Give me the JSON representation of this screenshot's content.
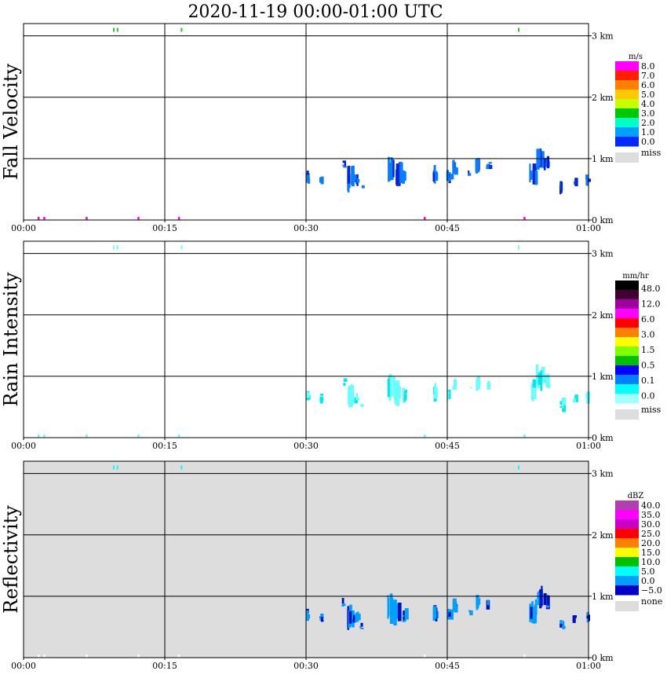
{
  "title": "2020-11-19   00:00-01:00 UTC",
  "chart_data": [
    {
      "type": "heatmap",
      "ylabel": "Fall Velocity",
      "x_ticks": [
        "00:00",
        "00:15",
        "00:30",
        "00:45",
        "01:00"
      ],
      "y_ticks": [
        {
          "value": 0,
          "label": "0 km"
        },
        {
          "value": 1,
          "label": "1 km"
        },
        {
          "value": 2,
          "label": "2 km"
        },
        {
          "value": 3,
          "label": "3 km"
        }
      ],
      "xlim_minutes": [
        0,
        60
      ],
      "ylim_km": [
        0,
        3.2
      ],
      "grid": true,
      "background": "#ffffff",
      "colorbar": {
        "unit": "m/s",
        "labels": [
          "8.0",
          "7.0",
          "6.0",
          "5.0",
          "4.0",
          "3.0",
          "2.0",
          "1.0",
          "0.0"
        ],
        "colors": [
          "#ff00ff",
          "#ff1e00",
          "#ff7f00",
          "#ffc800",
          "#c8ff00",
          "#00c800",
          "#00ffc8",
          "#00a0ff",
          "#0028ff"
        ],
        "extra": {
          "label": "miss",
          "color": "#dddddd"
        }
      },
      "echo_color": "#0a7cff",
      "echo_color_dark": "#0022dd",
      "surface_color": "#ff00ff",
      "top_color": "#30c030"
    },
    {
      "type": "heatmap",
      "ylabel": "Rain Intensity",
      "x_ticks": [
        "00:00",
        "00:15",
        "00:30",
        "00:45",
        "01:00"
      ],
      "y_ticks": [
        {
          "value": 0,
          "label": "0 km"
        },
        {
          "value": 1,
          "label": "1 km"
        },
        {
          "value": 2,
          "label": "2 km"
        },
        {
          "value": 3,
          "label": "3 km"
        }
      ],
      "xlim_minutes": [
        0,
        60
      ],
      "ylim_km": [
        0,
        3.2
      ],
      "grid": true,
      "background": "#ffffff",
      "colorbar": {
        "unit": "mm/hr",
        "labels": [
          "48.0",
          "12.0",
          "6.0",
          "3.0",
          "1.5",
          "0.5",
          "0.1",
          "0.0"
        ],
        "colors": [
          "#000000",
          "#400030",
          "#a000a0",
          "#ff00ff",
          "#ff0000",
          "#ff8000",
          "#ffff00",
          "#80ff00",
          "#00c000",
          "#0000ff",
          "#0080ff",
          "#00ffff",
          "#a0ffff"
        ],
        "extra": {
          "label": "miss",
          "color": "#dddddd"
        }
      },
      "echo_color": "#66ffff",
      "echo_color_dark": "#00e8e8",
      "surface_color": "#66ffff",
      "top_color": "#66ffff"
    },
    {
      "type": "heatmap",
      "ylabel": "Reflectivity",
      "x_ticks": [
        "00:00",
        "00:15",
        "00:30",
        "00:45",
        "01:00"
      ],
      "y_ticks": [
        {
          "value": 0,
          "label": "0 km"
        },
        {
          "value": 1,
          "label": "1 km"
        },
        {
          "value": 2,
          "label": "2 km"
        },
        {
          "value": 3,
          "label": "3 km"
        }
      ],
      "xlim_minutes": [
        0,
        60
      ],
      "ylim_km": [
        0,
        3.2
      ],
      "grid": true,
      "background": "#dddddd",
      "colorbar": {
        "unit": "dBZ",
        "labels": [
          "40.0",
          "35.0",
          "30.0",
          "25.0",
          "20.0",
          "15.0",
          "10.0",
          "5.0",
          "0.0",
          "−5.0"
        ],
        "colors": [
          "#b040b0",
          "#ff00ff",
          "#c800c8",
          "#ff0000",
          "#ff8000",
          "#ffff00",
          "#00c000",
          "#00ffff",
          "#00a0ff",
          "#0000c8"
        ],
        "extra": {
          "label": "none",
          "color": "#dddddd"
        }
      },
      "echo_color": "#00a0ff",
      "echo_color_dark": "#0010c0",
      "surface_color": "#ffffff",
      "top_color": "#00ffff"
    }
  ]
}
